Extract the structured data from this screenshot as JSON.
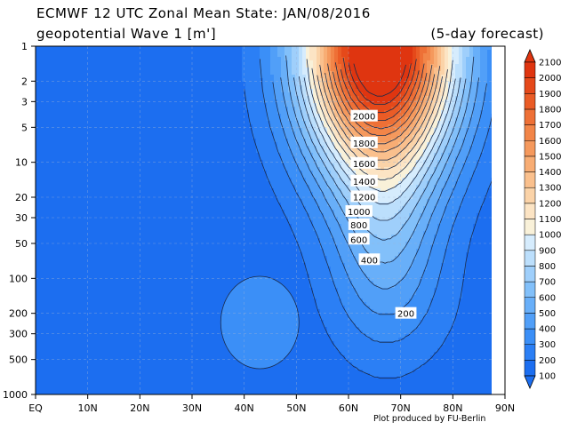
{
  "title_line1": "ECMWF 12 UTC Zonal Mean State: JAN/08/2016",
  "title_line2": "geopotential Wave 1 [m']",
  "forecast_note": "(5-day forecast)",
  "credit": "Plot produced by FU-Berlin",
  "chart_data": {
    "type": "heatmap",
    "title": "ECMWF 12 UTC Zonal Mean State: JAN/08/2016",
    "subtitle": "geopotential Wave 1 [m']",
    "x_tick_labels": [
      "EQ",
      "10N",
      "20N",
      "30N",
      "40N",
      "50N",
      "60N",
      "70N",
      "80N",
      "90N"
    ],
    "x_ticks": [
      0,
      10,
      20,
      30,
      40,
      50,
      60,
      70,
      80,
      90
    ],
    "xlim": [
      0,
      90
    ],
    "y_tick_labels": [
      "1",
      "2",
      "3",
      "5",
      "10",
      "20",
      "30",
      "50",
      "100",
      "200",
      "300",
      "500",
      "1000"
    ],
    "y_ticks": [
      1,
      2,
      3,
      5,
      10,
      20,
      30,
      50,
      100,
      200,
      300,
      500,
      1000
    ],
    "ylim": [
      1000,
      1
    ],
    "y_scale": "log",
    "colorbar_levels": [
      100,
      200,
      300,
      400,
      500,
      600,
      700,
      800,
      900,
      1000,
      1100,
      1200,
      1300,
      1400,
      1500,
      1600,
      1700,
      1800,
      1900,
      2000,
      2100
    ],
    "colorbar_colors": [
      "#1c6ef0",
      "#2b7ff5",
      "#3b8ff7",
      "#519ff8",
      "#68aff9",
      "#82c0fa",
      "#9fcffb",
      "#bcdffc",
      "#d6ecfd",
      "#f9f1d9",
      "#fce4c4",
      "#fbd3a8",
      "#fac08d",
      "#f8ad74",
      "#f5995d",
      "#f28548",
      "#ee7036",
      "#ea5c26",
      "#e5491a",
      "#df3510"
    ],
    "contour_labels": [
      {
        "text": "2000",
        "lat": 63,
        "p": 4.0
      },
      {
        "text": "1800",
        "lat": 63,
        "p": 6.8
      },
      {
        "text": "1600",
        "lat": 63,
        "p": 10.2
      },
      {
        "text": "1400",
        "lat": 63,
        "p": 14.5
      },
      {
        "text": "1200",
        "lat": 63,
        "p": 19.8
      },
      {
        "text": "1000",
        "lat": 62,
        "p": 26.5
      },
      {
        "text": "800",
        "lat": 62,
        "p": 34.5
      },
      {
        "text": "600",
        "lat": 62,
        "p": 46
      },
      {
        "text": "400",
        "lat": 64,
        "p": 69
      },
      {
        "text": "200",
        "lat": 71,
        "p": 200
      }
    ],
    "annotations": [
      "(5-day forecast)"
    ],
    "colorbar_extends": "both"
  }
}
